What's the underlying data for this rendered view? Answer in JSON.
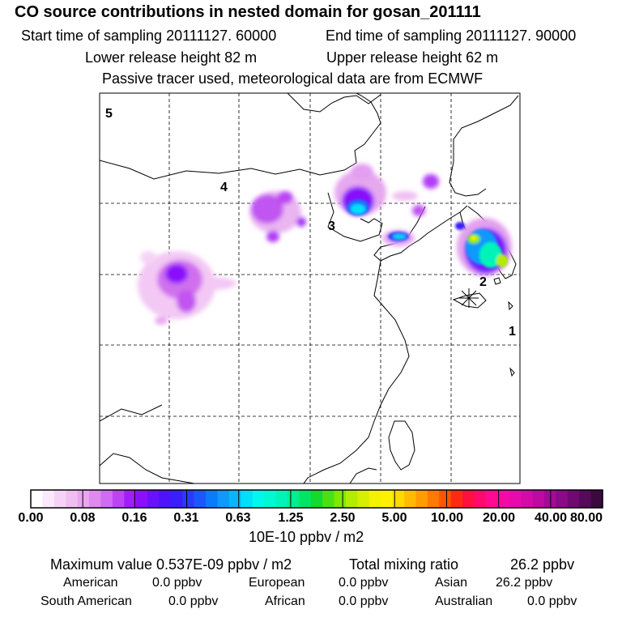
{
  "header": {
    "title": "CO  source contributions in nested domain for gosan_201111",
    "start_label": "Start time of sampling 20111127. 60000",
    "end_label": "End time of sampling 20111127. 90000",
    "lower_label": "Lower release height   82 m",
    "upper_label": "Upper release height   62 m",
    "tracer_label": "Passive tracer used, meteorological data are from ECMWF"
  },
  "map": {
    "region_labels": [
      "1",
      "2",
      "3",
      "4",
      "5"
    ],
    "receptor_marker": "asterisk-icon"
  },
  "colorbar": {
    "tick_labels": [
      "0.00",
      "0.08",
      "0.16",
      "0.31",
      "0.63",
      "1.25",
      "2.50",
      "5.00",
      "10.00",
      "20.00",
      "40.00",
      "80.00"
    ],
    "units": "10E-10 ppbv / m2",
    "colors": [
      "#ffffff",
      "#fbe9fb",
      "#f6d3f6",
      "#f0bff0",
      "#e9a6ef",
      "#de8aee",
      "#cf6cf0",
      "#bb44f4",
      "#a21ef9",
      "#8a10fb",
      "#6a10fb",
      "#4d14fc",
      "#3a1ffc",
      "#2b39fc",
      "#1b58fc",
      "#0a7cfb",
      "#0e9afb",
      "#06b8fb",
      "#00e0f8",
      "#00f8ec",
      "#00f8d4",
      "#00f4b8",
      "#00ee90",
      "#00e466",
      "#14d92e",
      "#4ce014",
      "#80e800",
      "#b4ec00",
      "#d8ee00",
      "#f4f200",
      "#fff000",
      "#ffd800",
      "#ffbc00",
      "#ff9d00",
      "#ff7a00",
      "#ff5400",
      "#ff2a14",
      "#ff1040",
      "#ff0a6c",
      "#ff0a92",
      "#f60aa6",
      "#e90aac",
      "#d60aa8",
      "#be0aa0",
      "#a30a96",
      "#8a0a88",
      "#700a72",
      "#560a5a",
      "#3a0a3e"
    ]
  },
  "stats": {
    "max_label": "Maximum value  0.537E-09 ppbv / m2",
    "total_label": "Total mixing ratio",
    "total_value": "26.2 ppbv",
    "american_label": "American",
    "american_value": "0.0 ppbv",
    "european_label": "European",
    "european_value": "0.0 ppbv",
    "asian_label": "Asian",
    "asian_value": "26.2 ppbv",
    "south_american_label": "South American",
    "south_american_value": "0.0 ppbv",
    "african_label": "African",
    "african_value": "0.0 ppbv",
    "australian_label": "Australian",
    "australian_value": "0.0 ppbv"
  }
}
